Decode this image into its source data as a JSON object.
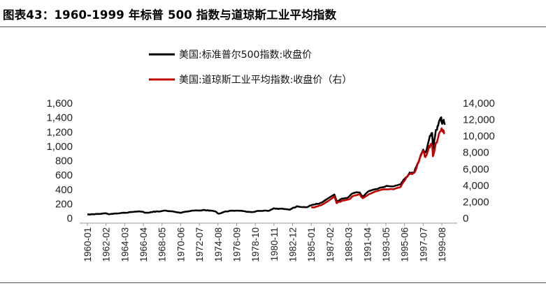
{
  "title": "图表43：1960-1999 年标普 500 指数与道琼斯工业平均指数",
  "colors": {
    "sp500": "#000000",
    "djia": "#c00000",
    "rule": "#555555"
  },
  "chart_data": {
    "type": "line",
    "title": "图表43：1960-1999 年标普 500 指数与道琼斯工业平均指数",
    "legend_position": "top-center",
    "grid": false,
    "x_tick_labels": [
      "1960-01",
      "1962-02",
      "1964-03",
      "1966-04",
      "1968-05",
      "1970-06",
      "1972-07",
      "1974-08",
      "1976-09",
      "1978-10",
      "1980-11",
      "1982-12",
      "1985-01",
      "1987-02",
      "1989-03",
      "1991-04",
      "1993-05",
      "1995-06",
      "1997-07",
      "1999-08"
    ],
    "y_left": {
      "ylim": [
        0,
        1600
      ],
      "ticks": [
        "1,600",
        "1,400",
        "1,200",
        "1,000",
        "800",
        "600",
        "400",
        "200",
        "0"
      ]
    },
    "y_right": {
      "ylim": [
        0,
        14000
      ],
      "ticks": [
        "14,000",
        "12,000",
        "10,000",
        "8,000",
        "6,000",
        "4,000",
        "2,000",
        "0"
      ]
    },
    "series": [
      {
        "name": "美国:标准普尔500指数:收盘价",
        "axis": "left",
        "x": [
          "1960-01",
          "1961-01",
          "1962-01",
          "1962-06",
          "1963-01",
          "1964-01",
          "1965-01",
          "1966-01",
          "1966-10",
          "1967-06",
          "1968-01",
          "1968-11",
          "1969-06",
          "1970-06",
          "1971-06",
          "1972-06",
          "1973-01",
          "1973-08",
          "1974-03",
          "1974-09",
          "1975-06",
          "1976-06",
          "1977-06",
          "1978-03",
          "1978-10",
          "1979-06",
          "1980-03",
          "1980-11",
          "1981-06",
          "1982-08",
          "1983-06",
          "1984-06",
          "1985-01",
          "1985-06",
          "1986-01",
          "1986-08",
          "1987-08",
          "1987-11",
          "1988-06",
          "1989-03",
          "1989-09",
          "1990-06",
          "1990-10",
          "1991-06",
          "1992-06",
          "1993-06",
          "1994-06",
          "1995-01",
          "1995-06",
          "1996-01",
          "1996-07",
          "1997-01",
          "1997-07",
          "1997-10",
          "1998-03",
          "1998-07",
          "1998-08",
          "1998-12",
          "1999-03",
          "1999-07",
          "1999-08",
          "1999-10",
          "1999-12"
        ],
        "values": [
          56,
          60,
          70,
          55,
          66,
          77,
          86,
          92,
          77,
          94,
          93,
          106,
          98,
          76,
          99,
          107,
          116,
          106,
          98,
          64,
          95,
          104,
          100,
          88,
          93,
          102,
          102,
          140,
          132,
          119,
          168,
          153,
          179,
          192,
          212,
          253,
          330,
          235,
          273,
          294,
          349,
          358,
          304,
          377,
          408,
          450,
          454,
          470,
          545,
          636,
          640,
          786,
          954,
          915,
          1101,
          1186,
          957,
          1229,
          1286,
          1402,
          1328,
          1362,
          1301
        ]
      },
      {
        "name": "美国:道琼斯工业平均指数:收盘价（右）",
        "axis": "right",
        "x": [
          "1985-01",
          "1985-06",
          "1986-01",
          "1986-08",
          "1987-08",
          "1987-11",
          "1988-06",
          "1989-03",
          "1989-09",
          "1990-06",
          "1990-10",
          "1991-06",
          "1992-06",
          "1993-06",
          "1994-06",
          "1995-01",
          "1995-06",
          "1996-01",
          "1996-07",
          "1997-01",
          "1997-07",
          "1997-10",
          "1998-03",
          "1998-07",
          "1998-08",
          "1998-12",
          "1999-03",
          "1999-07",
          "1999-08",
          "1999-10",
          "1999-12"
        ],
        "values": [
          1286,
          1336,
          1571,
          1898,
          2663,
          1834,
          2141,
          2294,
          2700,
          2880,
          2442,
          2907,
          3319,
          3516,
          3625,
          3843,
          4556,
          5395,
          5528,
          6813,
          8222,
          7442,
          8800,
          8883,
          7539,
          9181,
          9786,
          10655,
          10829,
          10730,
          10310
        ]
      }
    ]
  }
}
